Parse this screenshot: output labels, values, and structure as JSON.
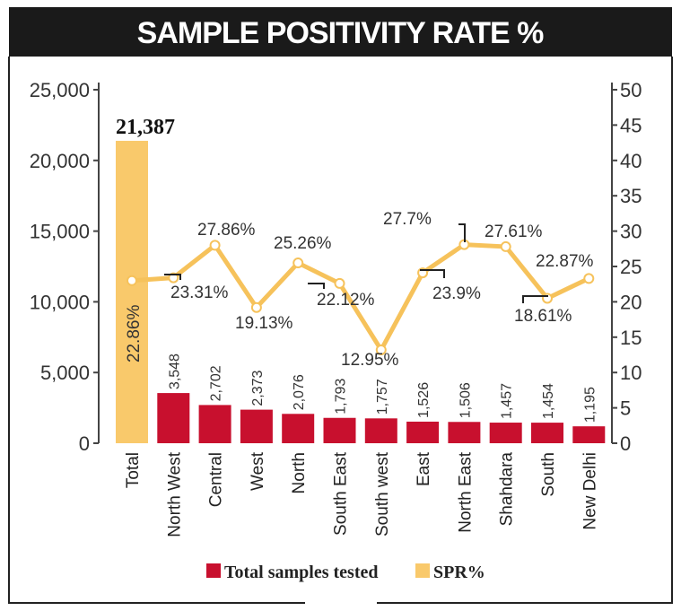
{
  "chart_data": {
    "type": "bar+line",
    "title": "SAMPLE POSITIVITY RATE %",
    "categories": [
      "Total",
      "North West",
      "Central",
      "West",
      "North",
      "South East",
      "South west",
      "East",
      "North East",
      "Shahdara",
      "South",
      "New Delhi"
    ],
    "series": [
      {
        "name": "Total samples tested",
        "type": "bar",
        "axis": "left",
        "color": "#c8102e",
        "values": [
          21387,
          3548,
          2702,
          2373,
          2076,
          1793,
          1757,
          1526,
          1506,
          1457,
          1454,
          1195
        ],
        "labels": [
          "21,387",
          "3,548",
          "2,702",
          "2,373",
          "2,076",
          "1,793",
          "1,757",
          "1,526",
          "1,506",
          "1,457",
          "1,454",
          "1,195"
        ]
      },
      {
        "name": "SPR%",
        "type": "line",
        "axis": "right",
        "color": "#f6c25b",
        "values": [
          22.86,
          23.31,
          27.86,
          19.13,
          25.26,
          22.12,
          12.95,
          23.9,
          27.7,
          27.61,
          18.61,
          22.87
        ],
        "labels": [
          "22.86%",
          "23.31%",
          "27.86%",
          "19.13%",
          "25.26%",
          "22.12%",
          "12.95%",
          "23.9%",
          "27.7%",
          "27.61%",
          "18.61%",
          "22.87%"
        ]
      }
    ],
    "total_bar_color": "#f9c96b",
    "left_axis": {
      "ylim": [
        0,
        25000
      ],
      "ticks": [
        "0",
        "5,000",
        "10,000",
        "15,000",
        "20,000",
        "25,000"
      ]
    },
    "right_axis": {
      "ylim": [
        0,
        50
      ],
      "ticks": [
        "0",
        "5",
        "10",
        "15",
        "20",
        "25",
        "30",
        "35",
        "40",
        "45",
        "50"
      ]
    },
    "legend": {
      "position": "bottom",
      "items": [
        "Total samples tested",
        "SPR%"
      ]
    }
  }
}
